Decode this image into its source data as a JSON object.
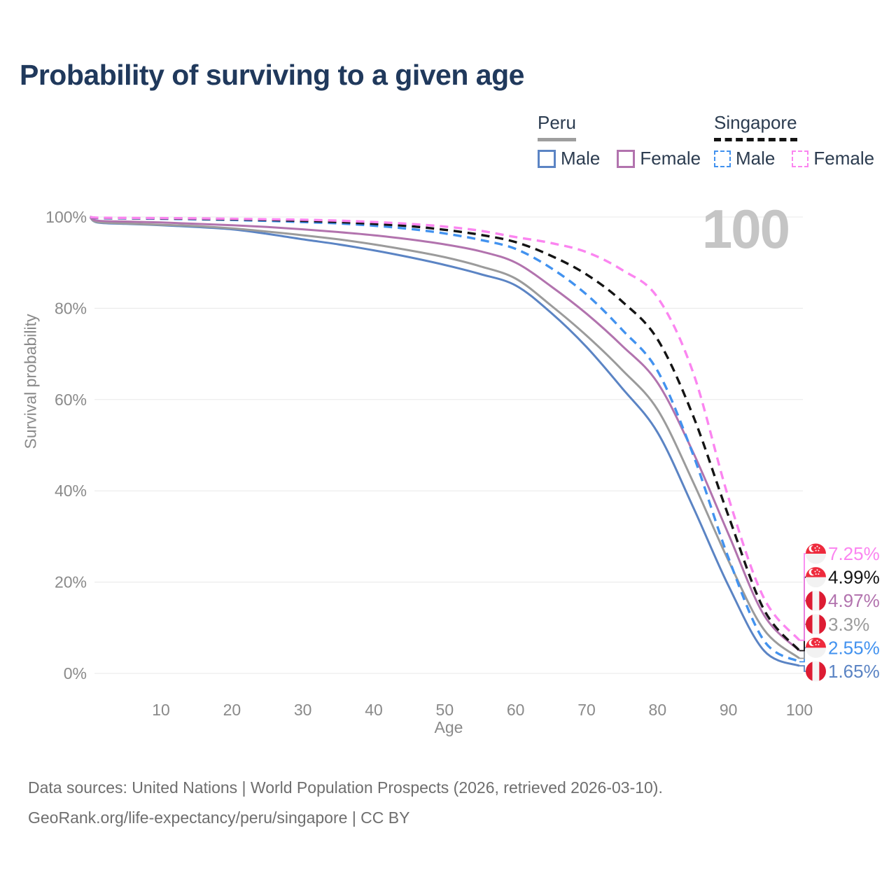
{
  "header": {
    "title": "Probability of surviving to a given age"
  },
  "palette": {
    "peru_male": "#5b84c4",
    "peru_female": "#b273ae",
    "peru_total": "#9b9b9b",
    "singapore_male": "#4292ef",
    "singapore_female": "#fb85f0",
    "singapore_total": "#141414"
  },
  "legend": {
    "groups": [
      {
        "label": "Peru",
        "underline_style": "solid",
        "underline_color": "#9e9e9e",
        "items": [
          {
            "label": "Male",
            "color_key": "peru_male",
            "line_style": "solid"
          },
          {
            "label": "Female",
            "color_key": "peru_female",
            "line_style": "solid"
          }
        ]
      },
      {
        "label": "Singapore",
        "underline_style": "dashed",
        "underline_color": "#141414",
        "items": [
          {
            "label": "Male",
            "color_key": "singapore_male",
            "line_style": "dashed"
          },
          {
            "label": "Female",
            "color_key": "singapore_female",
            "line_style": "dashed"
          }
        ]
      }
    ]
  },
  "chart_data": {
    "type": "line",
    "title": "Probability of surviving to a given age",
    "xlabel": "Age",
    "ylabel": "Survival probability",
    "xlim": [
      0,
      100
    ],
    "ylim": [
      0,
      100
    ],
    "x_ticks": [
      10,
      20,
      30,
      40,
      50,
      60,
      70,
      80,
      90,
      100
    ],
    "y_ticks": [
      0,
      20,
      40,
      60,
      80,
      100
    ],
    "y_tick_suffix": "%",
    "grid": "horizontal",
    "legend_position": "top-right",
    "age_indicator": "100",
    "x": [
      0,
      1,
      5,
      10,
      15,
      20,
      25,
      30,
      35,
      40,
      45,
      50,
      55,
      60,
      65,
      70,
      75,
      80,
      85,
      90,
      95,
      100
    ],
    "series": [
      {
        "name": "Peru Male",
        "country": "Peru",
        "sex": "Male",
        "color_key": "peru_male",
        "line_style": "solid",
        "flag": "peru",
        "end_label": "1.65%",
        "end_value": 1.65,
        "values": [
          100,
          98.8,
          98.5,
          98.2,
          97.8,
          97.3,
          96.3,
          95.1,
          94.0,
          92.7,
          91.2,
          89.5,
          87.5,
          85.0,
          79.0,
          71.5,
          62.5,
          52.8,
          36.5,
          19.2,
          5.0,
          1.65
        ]
      },
      {
        "name": "Peru Total",
        "country": "Peru",
        "sex": "Total",
        "color_key": "peru_total",
        "line_style": "solid",
        "flag": "peru",
        "end_label": "3.3%",
        "end_value": 3.3,
        "values": [
          100,
          98.9,
          98.6,
          98.3,
          98.0,
          97.5,
          96.8,
          96.0,
          95.1,
          94.0,
          92.7,
          91.2,
          89.2,
          86.5,
          80.6,
          74.0,
          66.5,
          57.8,
          42.0,
          24.7,
          9.6,
          3.3
        ]
      },
      {
        "name": "Peru Female",
        "country": "Peru",
        "sex": "Female",
        "color_key": "peru_female",
        "line_style": "solid",
        "flag": "peru",
        "end_label": "4.97%",
        "end_value": 4.97,
        "values": [
          100,
          99.2,
          99.0,
          98.8,
          98.5,
          98.2,
          97.8,
          97.3,
          96.7,
          96.0,
          95.1,
          94.0,
          92.5,
          90.0,
          84.8,
          78.8,
          71.8,
          63.7,
          48.5,
          30.5,
          12.8,
          4.97
        ]
      },
      {
        "name": "Singapore Male",
        "country": "Singapore",
        "sex": "Male",
        "color_key": "singapore_male",
        "line_style": "dashed",
        "flag": "singapore",
        "end_label": "2.55%",
        "end_value": 2.55,
        "values": [
          100,
          99.75,
          99.7,
          99.6,
          99.5,
          99.35,
          99.15,
          98.9,
          98.6,
          98.1,
          97.4,
          96.4,
          95.0,
          93.0,
          88.8,
          83.0,
          75.3,
          66.3,
          48.0,
          25.3,
          7.2,
          2.55
        ]
      },
      {
        "name": "Singapore Total",
        "country": "Singapore",
        "sex": "Total",
        "color_key": "singapore_total",
        "line_style": "dashed",
        "flag": "singapore",
        "end_label": "4.99%",
        "end_value": 4.99,
        "values": [
          100,
          99.8,
          99.75,
          99.7,
          99.6,
          99.5,
          99.35,
          99.15,
          98.9,
          98.5,
          98.0,
          97.2,
          96.1,
          94.5,
          91.5,
          87.4,
          81.5,
          73.2,
          56.5,
          34.5,
          14.0,
          4.99
        ]
      },
      {
        "name": "Singapore Female",
        "country": "Singapore",
        "sex": "Female",
        "color_key": "singapore_female",
        "line_style": "dashed",
        "flag": "singapore",
        "end_label": "7.25%",
        "end_value": 7.25,
        "values": [
          100,
          99.85,
          99.8,
          99.75,
          99.7,
          99.6,
          99.5,
          99.4,
          99.2,
          98.9,
          98.5,
          97.9,
          97.0,
          95.6,
          94.3,
          92.3,
          88.4,
          82.4,
          66.0,
          38.5,
          16.5,
          7.25
        ]
      }
    ]
  },
  "footer": {
    "line1": "Data sources: United Nations | World Population Prospects (2026, retrieved 2026-03-10).",
    "line2": "GeoRank.org/life-expectancy/peru/singapore | CC BY"
  }
}
